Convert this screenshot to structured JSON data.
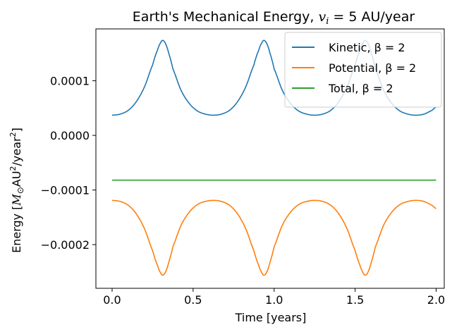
{
  "chart_data": {
    "type": "line",
    "title": {
      "prefix": "Earth's Mechanical Energy, ",
      "symbol": "v",
      "subscript": "i",
      "suffix": " = 5 AU/year"
    },
    "xlabel": "Time [years]",
    "ylabel": {
      "prefix": "Energy [",
      "symbol": "M",
      "subscript": "⊙",
      "mid": "AU",
      "sup1": "2",
      "slash": "/year",
      "sup2": "2",
      "suffix": "]"
    },
    "xlim": [
      -0.1,
      2.05
    ],
    "ylim": [
      -0.00028,
      0.000195
    ],
    "xticks": [
      0.0,
      0.5,
      1.0,
      1.5,
      2.0
    ],
    "xtick_labels": [
      "0.0",
      "0.5",
      "1.0",
      "1.5",
      "2.0"
    ],
    "yticks": [
      -0.0002,
      -0.0001,
      0.0,
      0.0001
    ],
    "ytick_labels": [
      "−0.0002",
      "−0.0001",
      "0.0000",
      "0.0001"
    ],
    "grid": false,
    "legend_position": "top-right",
    "period": 0.625,
    "series": [
      {
        "name": "Kinetic, β = 2",
        "color": "#1f77b4",
        "x": [
          0.0,
          0.05,
          0.1,
          0.15,
          0.2,
          0.25,
          0.28,
          0.3,
          0.3125,
          0.33,
          0.35,
          0.375,
          0.425,
          0.475,
          0.525,
          0.575,
          0.625,
          0.675,
          0.725,
          0.775,
          0.825,
          0.875,
          0.905,
          0.925,
          0.9375,
          0.955,
          0.975,
          1.0,
          1.05,
          1.1,
          1.15,
          1.2,
          1.25,
          1.3,
          1.35,
          1.4,
          1.45,
          1.5,
          1.53,
          1.55,
          1.5625,
          1.58,
          1.6,
          1.625,
          1.675,
          1.725,
          1.775,
          1.825,
          1.875,
          1.925,
          1.975,
          2.0
        ],
        "y": [
          3.7e-05,
          3.9e-05,
          4.6e-05,
          6.2e-05,
          8.9e-05,
          0.000129,
          0.000156,
          0.00017,
          0.000174,
          0.000168,
          0.00015,
          0.000122,
          8.3e-05,
          5.9e-05,
          4.5e-05,
          3.9e-05,
          3.7e-05,
          3.9e-05,
          4.6e-05,
          6.2e-05,
          8.9e-05,
          0.000129,
          0.000156,
          0.00017,
          0.000174,
          0.000168,
          0.00015,
          0.000122,
          8.3e-05,
          5.9e-05,
          4.5e-05,
          3.9e-05,
          3.7e-05,
          3.9e-05,
          4.6e-05,
          6.2e-05,
          8.9e-05,
          0.000129,
          0.000156,
          0.00017,
          0.000174,
          0.000168,
          0.00015,
          0.000122,
          8.3e-05,
          5.9e-05,
          4.5e-05,
          3.9e-05,
          3.7e-05,
          3.9e-05,
          4.6e-05,
          5.2e-05
        ]
      },
      {
        "name": "Potential, β = 2",
        "color": "#ff7f0e",
        "x": [
          0.0,
          0.05,
          0.1,
          0.15,
          0.2,
          0.25,
          0.28,
          0.3,
          0.3125,
          0.33,
          0.35,
          0.375,
          0.425,
          0.475,
          0.525,
          0.575,
          0.625,
          0.675,
          0.725,
          0.775,
          0.825,
          0.875,
          0.905,
          0.925,
          0.9375,
          0.955,
          0.975,
          1.0,
          1.05,
          1.1,
          1.15,
          1.2,
          1.25,
          1.3,
          1.35,
          1.4,
          1.45,
          1.5,
          1.53,
          1.55,
          1.5625,
          1.58,
          1.6,
          1.625,
          1.675,
          1.725,
          1.775,
          1.825,
          1.875,
          1.925,
          1.975,
          2.0
        ],
        "y": [
          -0.000119,
          -0.000121,
          -0.000128,
          -0.000144,
          -0.000171,
          -0.000211,
          -0.000238,
          -0.000252,
          -0.000256,
          -0.00025,
          -0.000232,
          -0.000204,
          -0.000165,
          -0.000141,
          -0.000127,
          -0.000121,
          -0.000119,
          -0.000121,
          -0.000128,
          -0.000144,
          -0.000171,
          -0.000211,
          -0.000238,
          -0.000252,
          -0.000256,
          -0.00025,
          -0.000232,
          -0.000204,
          -0.000165,
          -0.000141,
          -0.000127,
          -0.000121,
          -0.000119,
          -0.000121,
          -0.000128,
          -0.000144,
          -0.000171,
          -0.000211,
          -0.000238,
          -0.000252,
          -0.000256,
          -0.00025,
          -0.000232,
          -0.000204,
          -0.000165,
          -0.000141,
          -0.000127,
          -0.000121,
          -0.000119,
          -0.000121,
          -0.000128,
          -0.000134
        ]
      },
      {
        "name": "Total, β = 2",
        "color": "#2ca02c",
        "x": [
          0.0,
          2.0
        ],
        "y": [
          -8.2e-05,
          -8.2e-05
        ]
      }
    ]
  }
}
